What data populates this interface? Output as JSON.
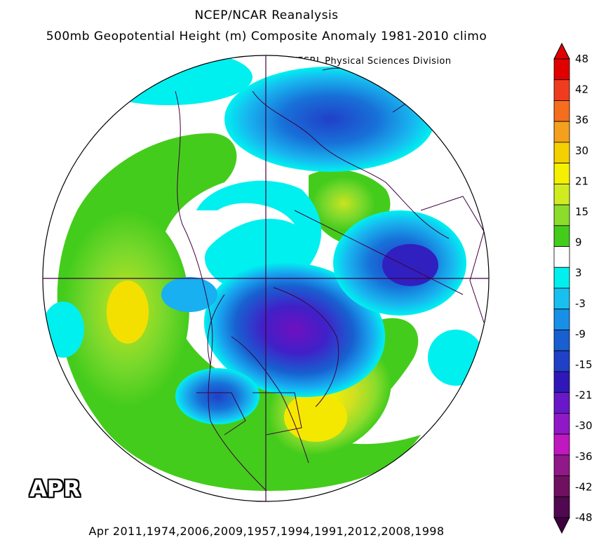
{
  "titles": {
    "line1": "NCEP/NCAR Reanalysis",
    "line2": "500mb Geopotential Height (m) Composite Anomaly 1981-2010 climo",
    "source": "NOAA/ESRL Physical Sciences Division"
  },
  "month_label": "APR",
  "footer": "Apr 2011,1974,2006,2009,1957,1994,1991,2012,2008,1998",
  "colorbar": {
    "labels": [
      "48",
      "42",
      "36",
      "30",
      "21",
      "15",
      "9",
      "3",
      "-3",
      "-9",
      "-15",
      "-21",
      "-30",
      "-36",
      "-42",
      "-48"
    ],
    "colors": [
      "#e00000",
      "#f03c1e",
      "#f46e1e",
      "#f4a01e",
      "#f4d000",
      "#f4f000",
      "#d0ec20",
      "#8cdc2c",
      "#44cc1c",
      "#ffffff",
      "#00f0f0",
      "#18c0f0",
      "#1890e8",
      "#1860d0",
      "#2040c8",
      "#3018b8",
      "#6818c8",
      "#9018c8",
      "#c018c0",
      "#901888",
      "#701060",
      "#500850"
    ],
    "max_color": "#e00000",
    "min_color": "#400040"
  },
  "map": {
    "projection": "north-polar-stereographic",
    "land_outline_color": "#400040"
  }
}
